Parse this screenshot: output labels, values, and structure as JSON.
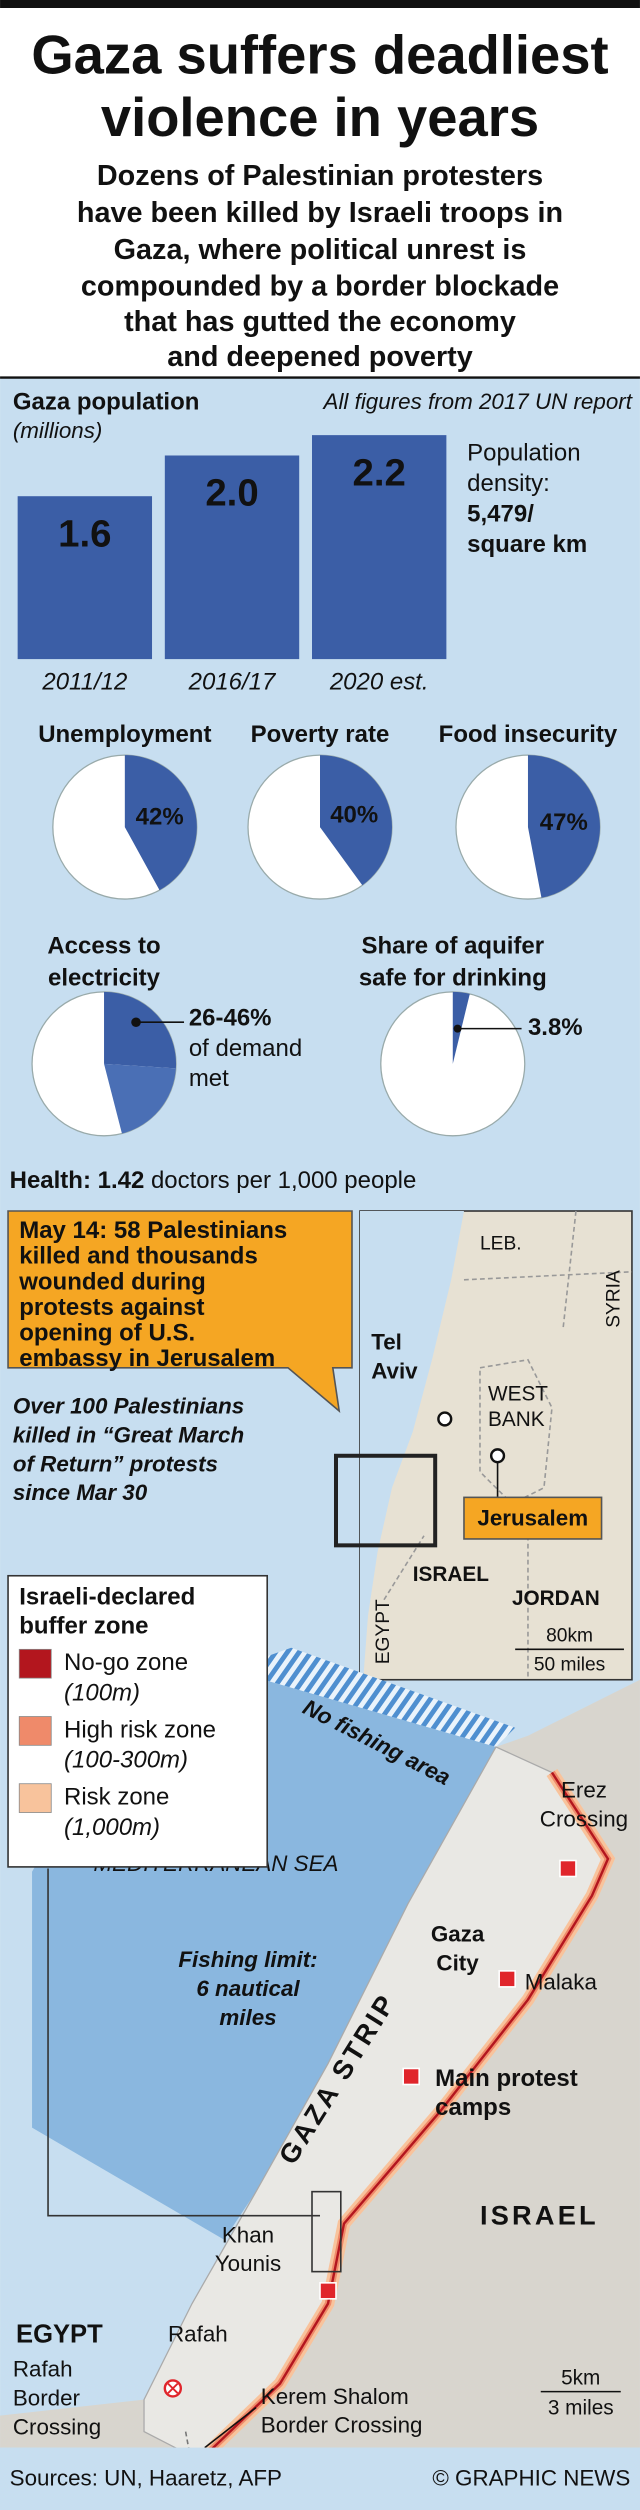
{
  "title": [
    "Gaza suffers deadliest",
    "violence in years"
  ],
  "subtitle": [
    "Dozens of Palestinian protesters",
    "have been killed by Israeli troops in",
    "Gaza, where political unrest is",
    "compounded by a border blockade",
    "that has gutted the economy",
    "and deepened poverty"
  ],
  "note": "All figures from 2017 UN report",
  "chart_data": [
    {
      "type": "bar",
      "title": "Gaza population",
      "subtitle": "(millions)",
      "categories": [
        "2011/12",
        "2016/17",
        "2020 est."
      ],
      "values": [
        1.6,
        2.0,
        2.2
      ],
      "value_labels": [
        "1.6",
        "2.0",
        "2.2"
      ],
      "color": "#3b5ea6",
      "ylim": [
        0,
        2.2
      ]
    },
    {
      "type": "pie",
      "title": [
        "Unemployment"
      ],
      "values": [
        42
      ],
      "value_labels": [
        "42%"
      ],
      "color": "#3b5ea6"
    },
    {
      "type": "pie",
      "title": [
        "Poverty rate"
      ],
      "values": [
        40
      ],
      "value_labels": [
        "40%"
      ],
      "color": "#3b5ea6"
    },
    {
      "type": "pie",
      "title": [
        "Food insecurity"
      ],
      "values": [
        47
      ],
      "value_labels": [
        "47%"
      ],
      "color": "#3b5ea6"
    },
    {
      "type": "pie",
      "title": [
        "Access to",
        "electricity"
      ],
      "values": [
        26,
        46
      ],
      "value_label": "26-46%",
      "annotation": [
        "of demand",
        "met"
      ],
      "color": "#3b5ea6"
    },
    {
      "type": "pie",
      "title": [
        "Share of aquifer",
        "safe for drinking"
      ],
      "values": [
        3.8
      ],
      "value_labels": [
        "3.8%"
      ],
      "color": "#3b5ea6"
    }
  ],
  "density": {
    "label": [
      "Population",
      "density:"
    ],
    "value": "5,479/",
    "unit": "square km"
  },
  "health": {
    "label": "Health:",
    "value": "1.42",
    "text": "doctors per 1,000 people"
  },
  "map": {
    "callout": [
      "May 14: 58 Palestinians",
      "killed and thousands",
      "wounded during",
      "protests against",
      "opening of U.S.",
      "embassy in Jerusalem"
    ],
    "note": [
      "Over 100 Palestinians",
      "killed in “Great March",
      "of Return” protests",
      "since Mar 30"
    ],
    "inset": {
      "leb": "LEB.",
      "syria": "SYRIA",
      "tel_aviv": [
        "Tel",
        "Aviv"
      ],
      "west_bank": [
        "WEST",
        "BANK"
      ],
      "jerusalem": "Jerusalem",
      "israel": "ISRAEL",
      "jordan": "JORDAN",
      "egypt": "EGYPT",
      "scale": [
        "80km",
        "50 miles"
      ]
    },
    "legend": {
      "title": [
        "Israeli-declared",
        "buffer zone"
      ],
      "items": [
        {
          "label": "No-go zone",
          "range": "(100m)",
          "color": "#b3161e"
        },
        {
          "label": "High risk zone",
          "range": "(100-300m)",
          "color": "#ef8a6a"
        },
        {
          "label": "Risk zone",
          "range": "(1,000m)",
          "color": "#f8c39c"
        }
      ]
    },
    "labels": {
      "no_fishing": "No fishing area",
      "sea": "MEDITERRANEAN SEA",
      "fishing_limit": [
        "Fishing limit:",
        "6 nautical",
        "miles"
      ],
      "gaza_strip": "GAZA STRIP",
      "erez": [
        "Erez",
        "Crossing"
      ],
      "gaza_city": [
        "Gaza",
        "City"
      ],
      "malaka": "Malaka",
      "protest": [
        "Main protest",
        "camps"
      ],
      "israel": "ISRAEL",
      "khan_younis": [
        "Khan",
        "Younis"
      ],
      "egypt": "EGYPT",
      "rafah": "Rafah",
      "rafah_crossing": [
        "Rafah",
        "Border",
        "Crossing"
      ],
      "kerem_shalom": [
        "Kerem Shalom",
        "Border Crossing"
      ],
      "scale": [
        "5km",
        "3 miles"
      ]
    }
  },
  "sources": "Sources: UN, Haaretz, AFP",
  "credit": "© GRAPHIC NEWS"
}
